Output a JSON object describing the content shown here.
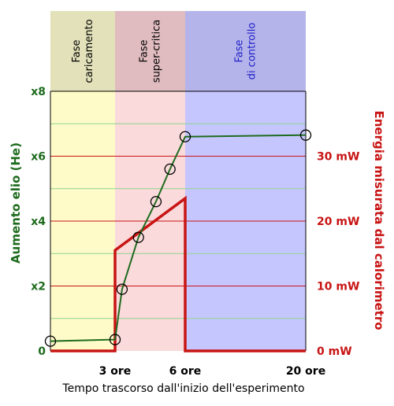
{
  "colors": {
    "helium": "#1e6b1e",
    "energy": "#c81414",
    "phase_loading_band": "#fffbc8",
    "phase_loading_header": "#e2e1ba",
    "phase_super_band": "#fadadb",
    "phase_super_header": "#e0bcc0",
    "phase_control_band": "#c6c6ff",
    "phase_control_header": "#b4b4ea",
    "control_text": "#2020c8"
  },
  "chart_data": {
    "type": "line",
    "xlabel": "Tempo trascorso dall'inizio dell'esperimento",
    "x_ticks": [
      {
        "x": 3,
        "label": "3 ore"
      },
      {
        "x": 6,
        "label": "6 ore"
      },
      {
        "x": 20,
        "label": "20 ore"
      }
    ],
    "y_left": {
      "label": "Aumento elio (He)",
      "range": [
        0,
        8
      ],
      "ticks": [
        {
          "value": 0,
          "label": "0"
        },
        {
          "value": 2,
          "label": "x2"
        },
        {
          "value": 4,
          "label": "x4"
        },
        {
          "value": 6,
          "label": "x6"
        },
        {
          "value": 8,
          "label": "x8"
        }
      ]
    },
    "y_right": {
      "label": "Energia misurata dal calorimetro",
      "unit": "mW",
      "range": [
        0,
        40
      ],
      "ticks": [
        {
          "value": 0,
          "label": "0 mW"
        },
        {
          "value": 10,
          "label": "10 mW"
        },
        {
          "value": 20,
          "label": "20 mW"
        },
        {
          "value": 30,
          "label": "30 mW"
        }
      ]
    },
    "phases": [
      {
        "label": "Fase\ncaricamento",
        "start": 0,
        "end": 3
      },
      {
        "label": "Fase\nsuper-critica",
        "start": 3,
        "end": 6
      },
      {
        "label": "Fase\ndi controllo",
        "start": 6,
        "end": 20
      }
    ],
    "series": [
      {
        "axis": "left",
        "points": [
          [
            0,
            0.3
          ],
          [
            3,
            0.35
          ],
          [
            3.3,
            1.9
          ],
          [
            4,
            3.5
          ],
          [
            4.75,
            4.6
          ],
          [
            5.35,
            5.6
          ],
          [
            6,
            6.6
          ],
          [
            20,
            6.65
          ]
        ]
      },
      {
        "axis": "right",
        "points": [
          [
            0,
            0
          ],
          [
            3,
            0
          ],
          [
            3,
            15.5
          ],
          [
            6,
            23.5
          ],
          [
            6,
            0
          ],
          [
            20,
            0
          ]
        ]
      }
    ]
  }
}
